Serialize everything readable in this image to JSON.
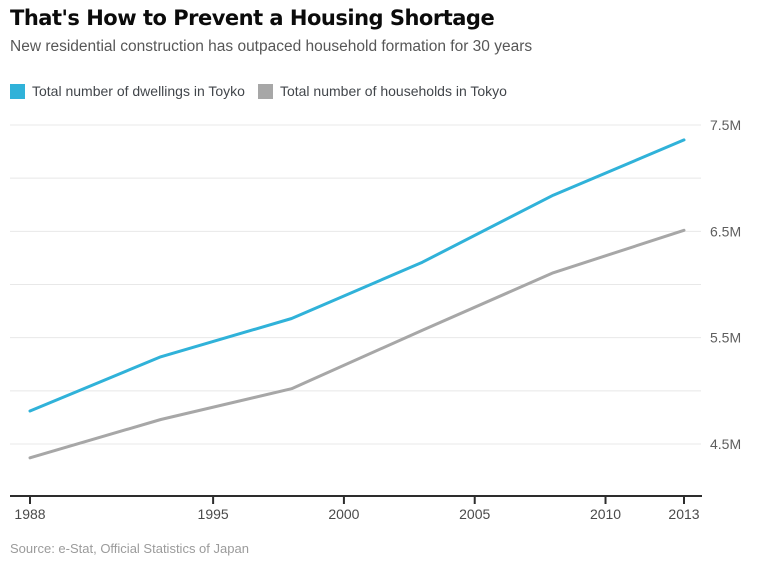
{
  "header": {
    "title": "That's How to Prevent a Housing Shortage",
    "subtitle": "New residential construction has outpaced household formation for 30 years"
  },
  "legend": {
    "items": [
      {
        "label": "Total number of dwellings in Toyko",
        "color": "#30b2d9"
      },
      {
        "label": "Total number of households in Tokyo",
        "color": "#a7a7a7"
      }
    ]
  },
  "source": "Source: e-Stat, Official Statistics of Japan",
  "chart_data": {
    "type": "line",
    "title": "That's How to Prevent a Housing Shortage",
    "subtitle": "New residential construction has outpaced household formation for 30 years",
    "x": [
      1988,
      1993,
      1998,
      2003,
      2008,
      2013
    ],
    "series": [
      {
        "name": "Total number of dwellings in Toyko",
        "color": "#30b2d9",
        "values": [
          4.81,
          5.32,
          5.68,
          6.21,
          6.84,
          7.36
        ]
      },
      {
        "name": "Total number of households in Tokyo",
        "color": "#a7a7a7",
        "values": [
          4.37,
          4.73,
          5.02,
          5.57,
          6.11,
          6.51
        ]
      }
    ],
    "xlabel": "",
    "ylabel": "",
    "y_unit": "M",
    "xlim": [
      1988,
      2013
    ],
    "ylim": [
      4.0,
      7.6
    ],
    "grid": true,
    "legend_position": "top-left",
    "x_ticks": [
      {
        "value": 1988,
        "label": "1988"
      },
      {
        "value": 1995,
        "label": "1995"
      },
      {
        "value": 2000,
        "label": "2000"
      },
      {
        "value": 2005,
        "label": "2005"
      },
      {
        "value": 2010,
        "label": "2010"
      },
      {
        "value": 2013,
        "label": "2013"
      }
    ],
    "y_gridlines": [
      4.5,
      5.0,
      5.5,
      6.0,
      6.5,
      7.0,
      7.5
    ],
    "y_tick_labels": [
      {
        "value": 7.5,
        "label": "7.5M"
      },
      {
        "value": 6.5,
        "label": "6.5M"
      },
      {
        "value": 5.5,
        "label": "5.5M"
      },
      {
        "value": 4.5,
        "label": "4.5M"
      }
    ]
  }
}
